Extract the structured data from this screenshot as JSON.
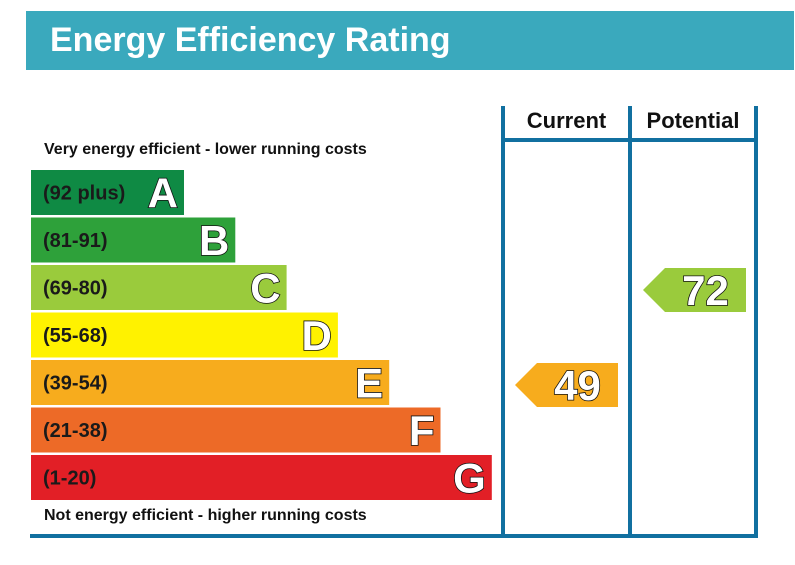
{
  "title": "Energy Efficiency Rating",
  "top_note": "Very energy efficient - lower running costs",
  "bottom_note": "Not energy efficient - higher running costs",
  "columns": {
    "current": "Current",
    "potential": "Potential"
  },
  "colors": {
    "header": "#3aa9bd",
    "frame": "#1170a0",
    "A": "#0f8a44",
    "B": "#2ea13a",
    "C": "#9acb3c",
    "D": "#fff200",
    "E": "#f7ac1d",
    "F": "#ed6a27",
    "G": "#e21f26"
  },
  "chart_data": {
    "type": "bar",
    "categories": [
      "A",
      "B",
      "C",
      "D",
      "E",
      "F",
      "G"
    ],
    "ranges": [
      "(92 plus)",
      "(81-91)",
      "(69-80)",
      "(55-68)",
      "(39-54)",
      "(21-38)",
      "(1-20)"
    ],
    "current": {
      "value": 49,
      "band": "E"
    },
    "potential": {
      "value": 72,
      "band": "C"
    }
  }
}
